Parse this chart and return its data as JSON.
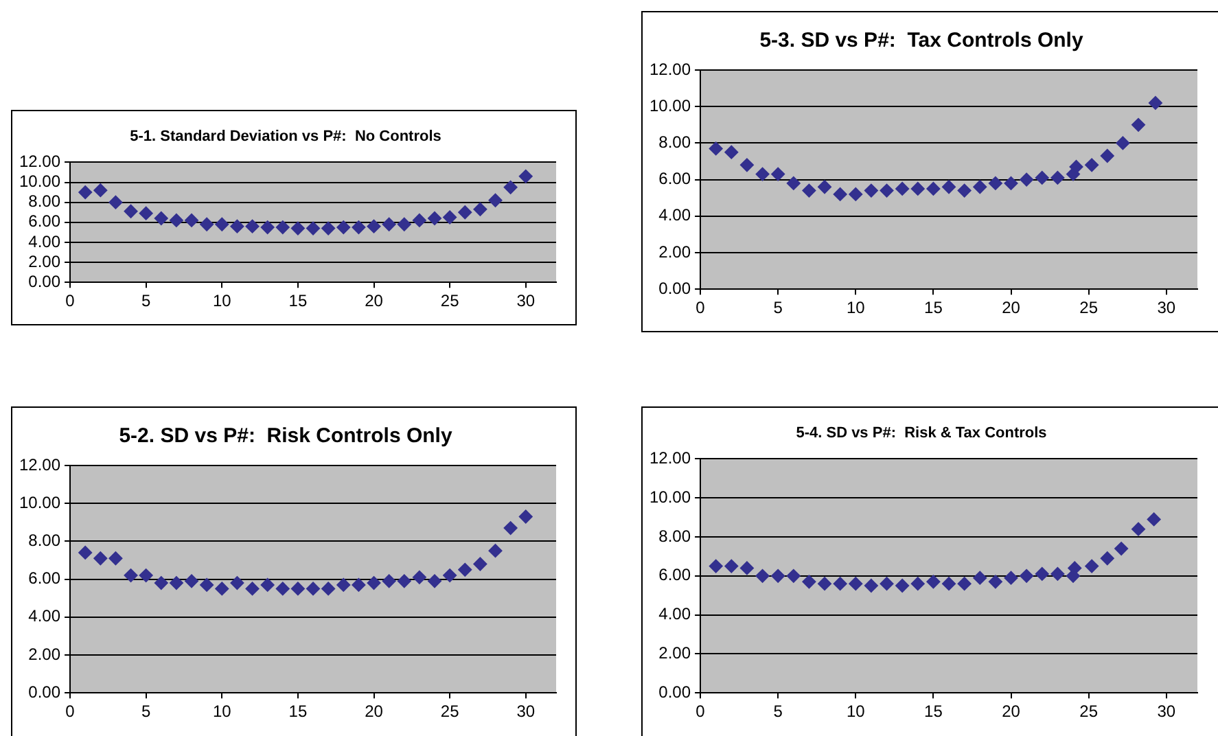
{
  "chart_data": [
    {
      "type": "scatter",
      "title": "5-1. Standard Deviation vs P#:  No Controls",
      "x": [
        1,
        2,
        3,
        4,
        5,
        6,
        7,
        8,
        9,
        10,
        11,
        12,
        13,
        14,
        15,
        16,
        17,
        18,
        19,
        20,
        21,
        22,
        23,
        24,
        25,
        26,
        27,
        28,
        29,
        30
      ],
      "series": [
        {
          "color": "#33308f",
          "values": [
            9.0,
            9.2,
            8.0,
            7.1,
            6.9,
            6.4,
            6.2,
            6.2,
            5.8,
            5.8,
            5.6,
            5.6,
            5.5,
            5.5,
            5.4,
            5.4,
            5.4,
            5.5,
            5.5,
            5.6,
            5.8,
            5.8,
            6.2,
            6.4,
            6.5,
            7.0,
            7.3,
            8.2,
            9.5,
            10.6
          ]
        }
      ],
      "xlim": [
        0,
        32
      ],
      "xticks": [
        0,
        5,
        10,
        15,
        20,
        25,
        30
      ],
      "ylim": [
        0,
        12
      ],
      "yticks": [
        {
          "value": 0,
          "label": "0.00"
        },
        {
          "value": 2,
          "label": "2.00"
        },
        {
          "value": 4,
          "label": "4.00"
        },
        {
          "value": 6,
          "label": "6.00"
        },
        {
          "value": 8,
          "label": "8.00"
        },
        {
          "value": 10,
          "label": "10.00"
        },
        {
          "value": 12,
          "label": "12.00"
        }
      ],
      "grid": "y",
      "marker": "diamond",
      "legend": false
    },
    {
      "type": "scatter",
      "title": "5-3. SD vs P#:  Tax Controls Only",
      "x": [
        1,
        2,
        3,
        4,
        5,
        6,
        7,
        8,
        9,
        10,
        11,
        12,
        13,
        14,
        15,
        16,
        17,
        18,
        19,
        20,
        21,
        22,
        23,
        24,
        24.2,
        25.2,
        26.2,
        27.2,
        28.2,
        29.3
      ],
      "series": [
        {
          "color": "#33308f",
          "values": [
            7.7,
            7.5,
            6.8,
            6.3,
            6.3,
            5.8,
            5.4,
            5.6,
            5.2,
            5.2,
            5.4,
            5.4,
            5.5,
            5.5,
            5.5,
            5.6,
            5.4,
            5.6,
            5.8,
            5.8,
            6.0,
            6.1,
            6.1,
            6.3,
            6.7,
            6.8,
            7.3,
            8.0,
            9.0,
            10.2
          ]
        }
      ],
      "xlim": [
        0,
        32
      ],
      "xticks": [
        0,
        5,
        10,
        15,
        20,
        25,
        30
      ],
      "ylim": [
        0,
        12
      ],
      "yticks": [
        {
          "value": 0,
          "label": "0.00"
        },
        {
          "value": 2,
          "label": "2.00"
        },
        {
          "value": 4,
          "label": "4.00"
        },
        {
          "value": 6,
          "label": "6.00"
        },
        {
          "value": 8,
          "label": "8.00"
        },
        {
          "value": 10,
          "label": "10.00"
        },
        {
          "value": 12,
          "label": "12.00"
        }
      ],
      "grid": "y",
      "marker": "diamond",
      "legend": false
    },
    {
      "type": "scatter",
      "title": "5-2. SD vs P#:  Risk Controls Only",
      "x": [
        1,
        2,
        3,
        4,
        5,
        6,
        7,
        8,
        9,
        10,
        11,
        12,
        13,
        14,
        15,
        16,
        17,
        18,
        19,
        20,
        21,
        22,
        23,
        24,
        25,
        26,
        27,
        28,
        29,
        30
      ],
      "series": [
        {
          "color": "#33308f",
          "values": [
            7.4,
            7.1,
            7.1,
            6.2,
            6.2,
            5.8,
            5.8,
            5.9,
            5.7,
            5.5,
            5.8,
            5.5,
            5.7,
            5.5,
            5.5,
            5.5,
            5.5,
            5.7,
            5.7,
            5.8,
            5.9,
            5.9,
            6.1,
            5.9,
            6.2,
            6.5,
            6.8,
            7.5,
            8.7,
            9.3
          ]
        }
      ],
      "xlim": [
        0,
        32
      ],
      "xticks": [
        0,
        5,
        10,
        15,
        20,
        25,
        30
      ],
      "ylim": [
        0,
        12
      ],
      "yticks": [
        {
          "value": 0,
          "label": "0.00"
        },
        {
          "value": 2,
          "label": "2.00"
        },
        {
          "value": 4,
          "label": "4.00"
        },
        {
          "value": 6,
          "label": "6.00"
        },
        {
          "value": 8,
          "label": "8.00"
        },
        {
          "value": 10,
          "label": "10.00"
        },
        {
          "value": 12,
          "label": "12.00"
        }
      ],
      "grid": "y",
      "marker": "diamond",
      "legend": false
    },
    {
      "type": "scatter",
      "title": "5-4. SD vs P#:  Risk & Tax Controls",
      "x": [
        1,
        2,
        3,
        4,
        5,
        6,
        7,
        8,
        9,
        10,
        11,
        12,
        13,
        14,
        15,
        16,
        17,
        18,
        19,
        20,
        21,
        22,
        23,
        24,
        24.1,
        25.2,
        26.2,
        27.1,
        28.2,
        29.2
      ],
      "series": [
        {
          "color": "#33308f",
          "values": [
            6.5,
            6.5,
            6.4,
            6.0,
            6.0,
            6.0,
            5.7,
            5.6,
            5.6,
            5.6,
            5.5,
            5.6,
            5.5,
            5.6,
            5.7,
            5.6,
            5.6,
            5.9,
            5.7,
            5.9,
            6.0,
            6.1,
            6.1,
            6.0,
            6.4,
            6.5,
            6.9,
            7.4,
            8.4,
            8.9
          ]
        }
      ],
      "xlim": [
        0,
        32
      ],
      "xticks": [
        0,
        5,
        10,
        15,
        20,
        25,
        30
      ],
      "ylim": [
        0,
        12
      ],
      "yticks": [
        {
          "value": 0,
          "label": "0.00"
        },
        {
          "value": 2,
          "label": "2.00"
        },
        {
          "value": 4,
          "label": "4.00"
        },
        {
          "value": 6,
          "label": "6.00"
        },
        {
          "value": 8,
          "label": "8.00"
        },
        {
          "value": 10,
          "label": "10.00"
        },
        {
          "value": 12,
          "label": "12.00"
        }
      ],
      "grid": "y",
      "marker": "diamond",
      "legend": false
    }
  ]
}
